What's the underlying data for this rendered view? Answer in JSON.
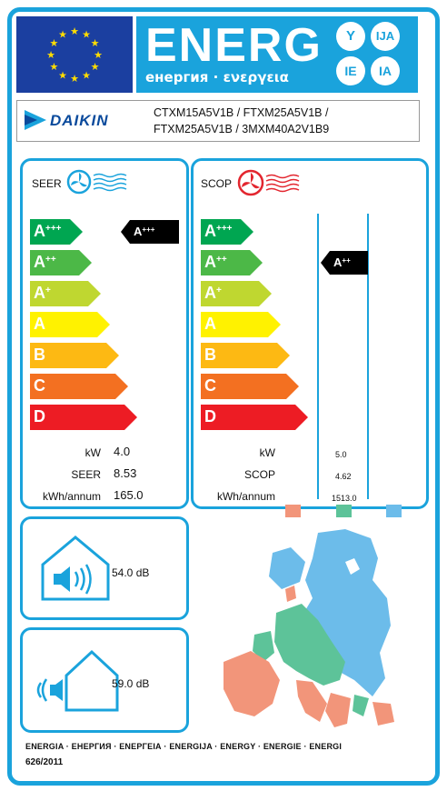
{
  "header": {
    "energy_title": "ENERG",
    "energy_subtitle": "енергия · ενεργεια",
    "lang_codes": [
      "Y",
      "IJA",
      "IE",
      "IA"
    ]
  },
  "brand": "DAIKIN",
  "models": {
    "line1": "CTXM15A5V1B / FTXM25A5V1B /",
    "line2": "FTXM25A5V1B / 3MXM40A2V1B9"
  },
  "classes": [
    {
      "label": "A",
      "sup": "+++",
      "color": "#00a651"
    },
    {
      "label": "A",
      "sup": "++",
      "color": "#4cb847"
    },
    {
      "label": "A",
      "sup": "+",
      "color": "#bfd730"
    },
    {
      "label": "A",
      "sup": "",
      "color": "#fff200"
    },
    {
      "label": "B",
      "sup": "",
      "color": "#fdb913"
    },
    {
      "label": "C",
      "sup": "",
      "color": "#f37021"
    },
    {
      "label": "D",
      "sup": "",
      "color": "#ed1c24"
    }
  ],
  "seer": {
    "title": "SEER",
    "rating": {
      "label": "A",
      "sup": "+++"
    },
    "rating_class_index": 0,
    "rows": [
      {
        "label": "kW",
        "value": "4.0"
      },
      {
        "label": "SEER",
        "value": "8.53"
      },
      {
        "label": "kWh/annum",
        "value": "165.0"
      }
    ],
    "icon": "cooling-fan-icon"
  },
  "scop": {
    "title": "SCOP",
    "rating": {
      "label": "A",
      "sup": "++"
    },
    "rating_class_index": 1,
    "rows": [
      {
        "label": "kW",
        "value": "5.0"
      },
      {
        "label": "SCOP",
        "value": "4.62"
      },
      {
        "label": "kWh/annum",
        "value": "1513.0"
      }
    ],
    "icon": "heating-fan-icon",
    "climate_zone_colors": [
      "#f2957a",
      "#5dc399",
      "#6cbcea"
    ]
  },
  "sound": {
    "indoor_value": "54.0 dB",
    "outdoor_value": "59.0 dB"
  },
  "footer": {
    "languages": "ENERGIA · ЕНЕРГИЯ · ΕΝΕΡΓΕΙΑ · ENERGIJA · ENERGY · ENERGIE · ENERGI",
    "regulation": "626/2011"
  },
  "colors": {
    "frame": "#1aa3dc",
    "eu_blue": "#1b3fa0",
    "eu_star": "#ffdd00",
    "daikin_blue": "#0a4a9c"
  }
}
